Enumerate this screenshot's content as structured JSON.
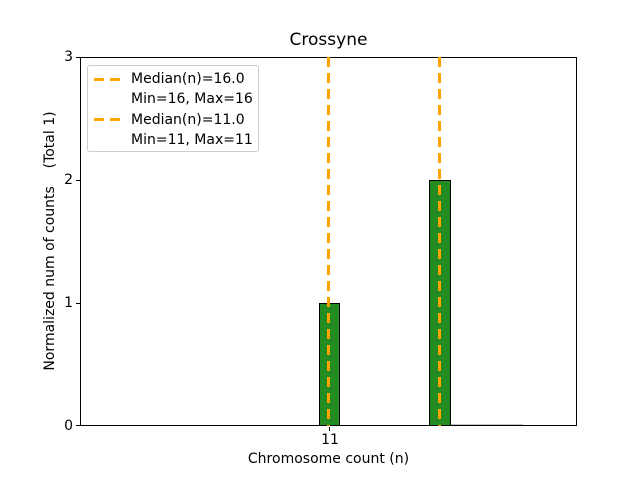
{
  "chart_data": {
    "type": "bar",
    "title": "Crossyne",
    "xlabel": "Chromosome count (n)",
    "ylabel": "Normalized num of counts    (Total 1)",
    "ylim": [
      0,
      3
    ],
    "yticks": [
      "0",
      "1",
      "2",
      "3"
    ],
    "xticks": [
      "11"
    ],
    "grid": false,
    "bar_color": "#228B22",
    "bar_edge_color": "#000000",
    "bars": [
      {
        "x": 11,
        "height": 1
      },
      {
        "x": 16,
        "height": 2
      }
    ],
    "median_lines": [
      {
        "x": 16,
        "median": 16.0,
        "min": 16,
        "max": 16,
        "style": "dashed",
        "color": "#FFA500"
      },
      {
        "x": 11,
        "median": 11.0,
        "min": 11,
        "max": 11,
        "style": "dashed",
        "color": "#FFA500"
      }
    ],
    "legend": {
      "position": "upper-left",
      "border_color": "#cccccc",
      "entries": [
        {
          "marker": "dashed-line",
          "marker_color": "#FFA500",
          "label": "Median(n)=16.0"
        },
        {
          "marker": "none",
          "marker_color": "",
          "label": "Min=16, Max=16"
        },
        {
          "marker": "dashed-line",
          "marker_color": "#FFA500",
          "label": "Median(n)=11.0"
        },
        {
          "marker": "none",
          "marker_color": "",
          "label": "Min=11, Max=11"
        }
      ]
    }
  }
}
